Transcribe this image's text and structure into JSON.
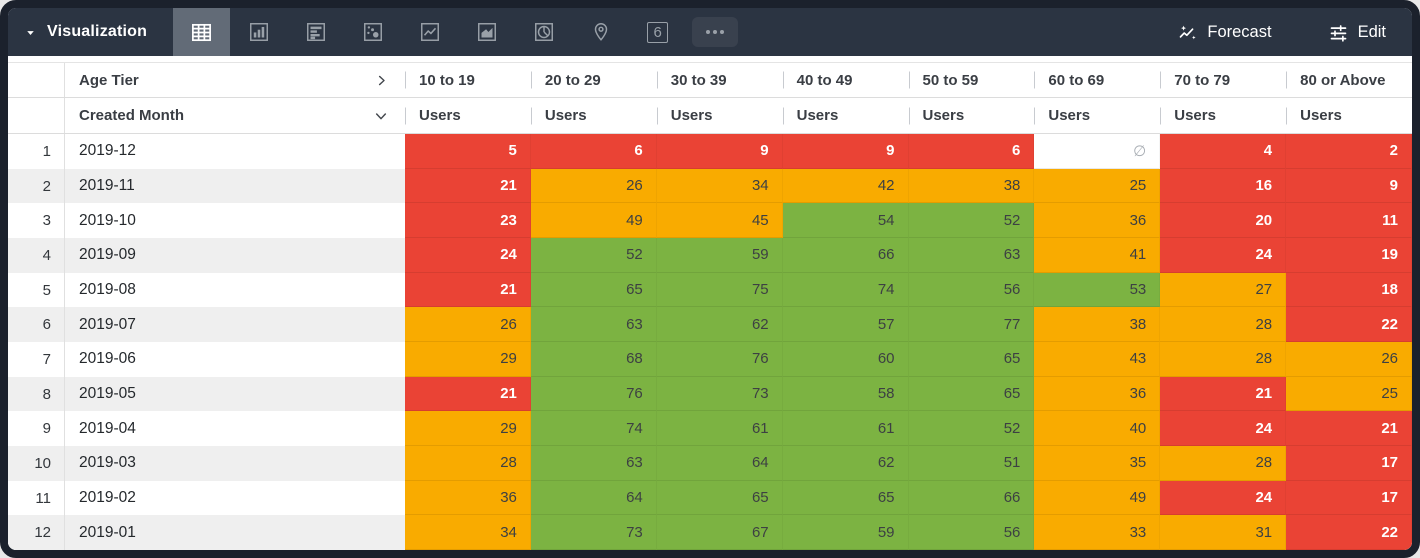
{
  "toolbar": {
    "visualization_label": "Visualization",
    "forecast_label": "Forecast",
    "edit_label": "Edit",
    "viz_types": [
      {
        "name": "table",
        "selected": true
      },
      {
        "name": "column-chart",
        "selected": false
      },
      {
        "name": "bar-chart",
        "selected": false
      },
      {
        "name": "scatter",
        "selected": false
      },
      {
        "name": "line-chart",
        "selected": false
      },
      {
        "name": "area-chart",
        "selected": false
      },
      {
        "name": "pie-chart",
        "selected": false
      },
      {
        "name": "map",
        "selected": false
      },
      {
        "name": "single-value",
        "selected": false,
        "text": "6"
      },
      {
        "name": "more",
        "selected": false
      }
    ]
  },
  "table": {
    "pivot_dimension": "Age Tier",
    "row_dimension": "Created Month",
    "measure": "Users",
    "columns": [
      "10 to 19",
      "20 to 29",
      "30 to 39",
      "40 to 49",
      "50 to 59",
      "60 to 69",
      "70 to 79",
      "80 or Above"
    ],
    "rows": [
      {
        "index": "1",
        "month": "2019-12",
        "cells": [
          {
            "v": "5",
            "c": "red"
          },
          {
            "v": "6",
            "c": "red"
          },
          {
            "v": "9",
            "c": "red"
          },
          {
            "v": "9",
            "c": "red"
          },
          {
            "v": "6",
            "c": "red"
          },
          {
            "v": "∅",
            "c": "null"
          },
          {
            "v": "4",
            "c": "red"
          },
          {
            "v": "2",
            "c": "red"
          }
        ]
      },
      {
        "index": "2",
        "month": "2019-11",
        "cells": [
          {
            "v": "21",
            "c": "red"
          },
          {
            "v": "26",
            "c": "orange"
          },
          {
            "v": "34",
            "c": "orange"
          },
          {
            "v": "42",
            "c": "orange"
          },
          {
            "v": "38",
            "c": "orange"
          },
          {
            "v": "25",
            "c": "orange"
          },
          {
            "v": "16",
            "c": "red"
          },
          {
            "v": "9",
            "c": "red"
          }
        ]
      },
      {
        "index": "3",
        "month": "2019-10",
        "cells": [
          {
            "v": "23",
            "c": "red"
          },
          {
            "v": "49",
            "c": "orange"
          },
          {
            "v": "45",
            "c": "orange"
          },
          {
            "v": "54",
            "c": "green"
          },
          {
            "v": "52",
            "c": "green"
          },
          {
            "v": "36",
            "c": "orange"
          },
          {
            "v": "20",
            "c": "red"
          },
          {
            "v": "11",
            "c": "red"
          }
        ]
      },
      {
        "index": "4",
        "month": "2019-09",
        "cells": [
          {
            "v": "24",
            "c": "red"
          },
          {
            "v": "52",
            "c": "green"
          },
          {
            "v": "59",
            "c": "green"
          },
          {
            "v": "66",
            "c": "green"
          },
          {
            "v": "63",
            "c": "green"
          },
          {
            "v": "41",
            "c": "orange"
          },
          {
            "v": "24",
            "c": "red"
          },
          {
            "v": "19",
            "c": "red"
          }
        ]
      },
      {
        "index": "5",
        "month": "2019-08",
        "cells": [
          {
            "v": "21",
            "c": "red"
          },
          {
            "v": "65",
            "c": "green"
          },
          {
            "v": "75",
            "c": "green"
          },
          {
            "v": "74",
            "c": "green"
          },
          {
            "v": "56",
            "c": "green"
          },
          {
            "v": "53",
            "c": "green"
          },
          {
            "v": "27",
            "c": "orange"
          },
          {
            "v": "18",
            "c": "red"
          }
        ]
      },
      {
        "index": "6",
        "month": "2019-07",
        "cells": [
          {
            "v": "26",
            "c": "orange"
          },
          {
            "v": "63",
            "c": "green"
          },
          {
            "v": "62",
            "c": "green"
          },
          {
            "v": "57",
            "c": "green"
          },
          {
            "v": "77",
            "c": "green"
          },
          {
            "v": "38",
            "c": "orange"
          },
          {
            "v": "28",
            "c": "orange"
          },
          {
            "v": "22",
            "c": "red"
          }
        ]
      },
      {
        "index": "7",
        "month": "2019-06",
        "cells": [
          {
            "v": "29",
            "c": "orange"
          },
          {
            "v": "68",
            "c": "green"
          },
          {
            "v": "76",
            "c": "green"
          },
          {
            "v": "60",
            "c": "green"
          },
          {
            "v": "65",
            "c": "green"
          },
          {
            "v": "43",
            "c": "orange"
          },
          {
            "v": "28",
            "c": "orange"
          },
          {
            "v": "26",
            "c": "orange"
          }
        ]
      },
      {
        "index": "8",
        "month": "2019-05",
        "cells": [
          {
            "v": "21",
            "c": "red"
          },
          {
            "v": "76",
            "c": "green"
          },
          {
            "v": "73",
            "c": "green"
          },
          {
            "v": "58",
            "c": "green"
          },
          {
            "v": "65",
            "c": "green"
          },
          {
            "v": "36",
            "c": "orange"
          },
          {
            "v": "21",
            "c": "red"
          },
          {
            "v": "25",
            "c": "orange"
          }
        ]
      },
      {
        "index": "9",
        "month": "2019-04",
        "cells": [
          {
            "v": "29",
            "c": "orange"
          },
          {
            "v": "74",
            "c": "green"
          },
          {
            "v": "61",
            "c": "green"
          },
          {
            "v": "61",
            "c": "green"
          },
          {
            "v": "52",
            "c": "green"
          },
          {
            "v": "40",
            "c": "orange"
          },
          {
            "v": "24",
            "c": "red"
          },
          {
            "v": "21",
            "c": "red"
          }
        ]
      },
      {
        "index": "10",
        "month": "2019-03",
        "cells": [
          {
            "v": "28",
            "c": "orange"
          },
          {
            "v": "63",
            "c": "green"
          },
          {
            "v": "64",
            "c": "green"
          },
          {
            "v": "62",
            "c": "green"
          },
          {
            "v": "51",
            "c": "green"
          },
          {
            "v": "35",
            "c": "orange"
          },
          {
            "v": "28",
            "c": "orange"
          },
          {
            "v": "17",
            "c": "red"
          }
        ]
      },
      {
        "index": "11",
        "month": "2019-02",
        "cells": [
          {
            "v": "36",
            "c": "orange"
          },
          {
            "v": "64",
            "c": "green"
          },
          {
            "v": "65",
            "c": "green"
          },
          {
            "v": "65",
            "c": "green"
          },
          {
            "v": "66",
            "c": "green"
          },
          {
            "v": "49",
            "c": "orange"
          },
          {
            "v": "24",
            "c": "red"
          },
          {
            "v": "17",
            "c": "red"
          }
        ]
      },
      {
        "index": "12",
        "month": "2019-01",
        "cells": [
          {
            "v": "34",
            "c": "orange"
          },
          {
            "v": "73",
            "c": "green"
          },
          {
            "v": "67",
            "c": "green"
          },
          {
            "v": "59",
            "c": "green"
          },
          {
            "v": "56",
            "c": "green"
          },
          {
            "v": "33",
            "c": "orange"
          },
          {
            "v": "31",
            "c": "orange"
          },
          {
            "v": "22",
            "c": "red"
          }
        ]
      }
    ]
  },
  "colors": {
    "topbar_bg": "#2b3442",
    "selected_icon_bg": "#626b77",
    "red": "#ea4335",
    "orange": "#f9ab00",
    "green": "#7cb342",
    "alt_row_bg": "#efefef"
  },
  "null_symbol": "∅"
}
